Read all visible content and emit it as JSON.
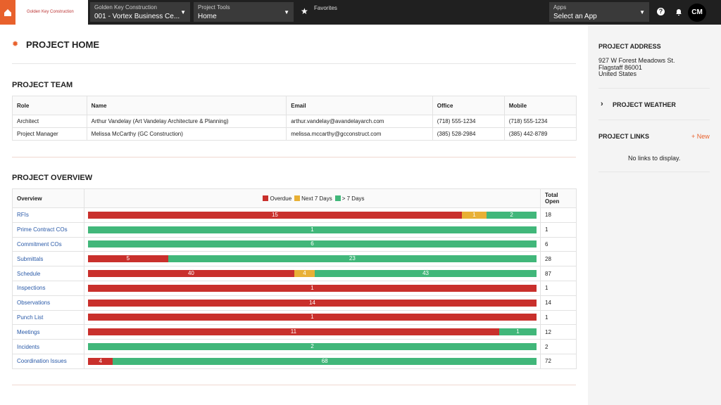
{
  "top_bar": {
    "logo": "Golden Key Construction",
    "company": "Golden Key Construction",
    "project": "001 - Vortex Business Ce...",
    "tools_label": "Project Tools",
    "tools": "Home",
    "favorites": "Favorites",
    "apps_label": "Apps",
    "apps": "Select an App",
    "avatar": "CM"
  },
  "page_title": "PROJECT HOME",
  "team": {
    "title": "PROJECT TEAM",
    "columns": [
      "Role",
      "Name",
      "Email",
      "Office",
      "Mobile"
    ],
    "rows": [
      [
        "Architect",
        "Arthur Vandelay (Art Vandelay Architecture & Planning)",
        "arthur.vandelay@avandelayarch.com",
        "(718) 555-1234",
        "(718) 555-1234"
      ],
      [
        "Project Manager",
        "Melissa McCarthy (GC Construction)",
        "melissa.mccarthy@gcconstruct.com",
        "(385) 528-2984",
        "(385) 442-8789"
      ]
    ]
  },
  "overview": {
    "title": "PROJECT OVERVIEW",
    "column": "Overview",
    "total_column": "Total Open",
    "legend": [
      {
        "name": "Overdue",
        "color": "#c9302c"
      },
      {
        "name": "Next 7 Days",
        "color": "#e8b035"
      },
      {
        "name": "> 7 Days",
        "color": "#41b77a"
      }
    ],
    "rows": [
      {
        "name": "RFIs",
        "values": [
          15,
          1,
          2
        ],
        "total": 18
      },
      {
        "name": "Prime Contract COs",
        "values": [
          null,
          null,
          1
        ],
        "total": 1
      },
      {
        "name": "Commitment COs",
        "values": [
          null,
          null,
          6
        ],
        "total": 6
      },
      {
        "name": "Submittals",
        "values": [
          5,
          null,
          23
        ],
        "total": 28
      },
      {
        "name": "Schedule",
        "values": [
          40,
          4,
          43
        ],
        "total": 87
      },
      {
        "name": "Inspections",
        "values": [
          1,
          null,
          null
        ],
        "total": 1
      },
      {
        "name": "Observations",
        "values": [
          14,
          null,
          null
        ],
        "total": 14
      },
      {
        "name": "Punch List",
        "values": [
          1,
          null,
          null
        ],
        "total": 1
      },
      {
        "name": "Meetings",
        "values": [
          11,
          null,
          1
        ],
        "total": 12
      },
      {
        "name": "Incidents",
        "values": [
          null,
          null,
          2
        ],
        "total": 2
      },
      {
        "name": "Coordination Issues",
        "values": [
          4,
          null,
          68
        ],
        "total": 72
      }
    ]
  },
  "sidebar": {
    "address_title": "PROJECT ADDRESS",
    "address": [
      "927 W Forest Meadows St.",
      "Flagstaff 86001",
      "United States"
    ],
    "weather_title": "PROJECT WEATHER",
    "links_title": "PROJECT LINKS",
    "new_link": "+ New",
    "no_links": "No links to display."
  }
}
